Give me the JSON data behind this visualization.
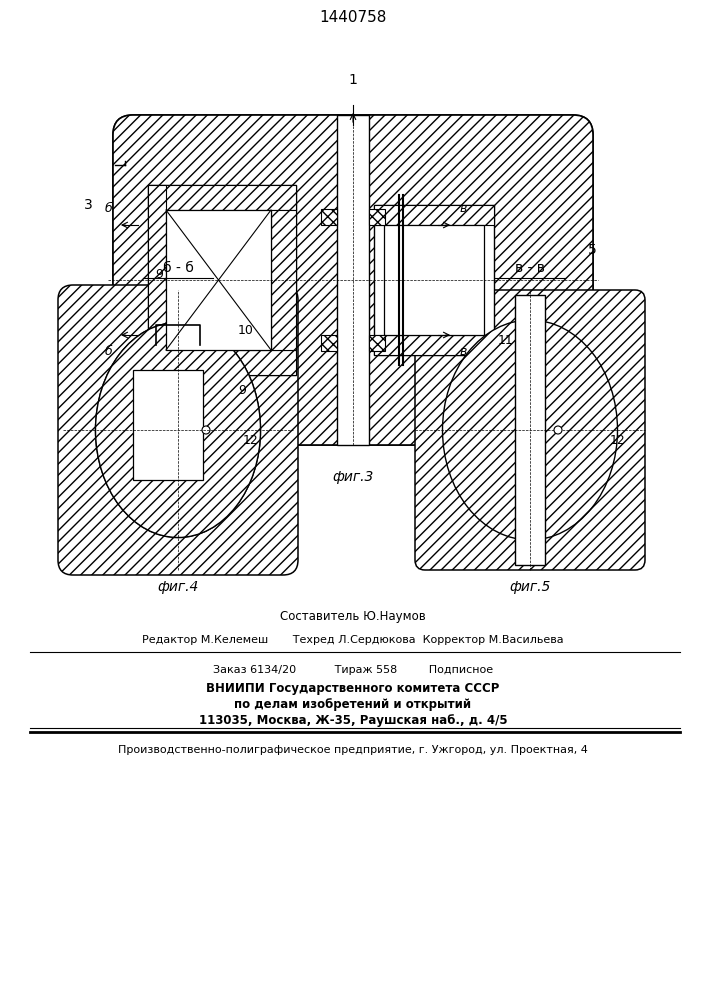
{
  "patent_number": "1440758",
  "fig3_label": "фиг.3",
  "fig4_label": "фиг.4",
  "fig5_label": "фиг.5",
  "section_bb": "б - б",
  "section_vv": "в - в",
  "label_1": "1",
  "label_3": "3",
  "label_5": "5",
  "label_6": "б",
  "label_8": "в",
  "label_9": "9",
  "label_10": "10",
  "label_11": "11",
  "label_12": "12",
  "footer_line1": "Составитель Ю.Наумов",
  "footer_line2": "Редактор М.Келемеш       Техред Л.Сердюкова  Корректор М.Васильева",
  "footer_line3": "Заказ 6134/20           Тираж 558         Подписное",
  "footer_line4": "ВНИИПИ Государственного комитета СССР",
  "footer_line5": "по делам изобретений и открытий",
  "footer_line6": "113035, Москва, Ж-35, Раушская наб., д. 4/5",
  "footer_line7": "Производственно-полиграфическое предприятие, г. Ужгород, ул. Проектная, 4",
  "bg_color": "#ffffff",
  "hatch_color": "#000000",
  "line_color": "#000000"
}
